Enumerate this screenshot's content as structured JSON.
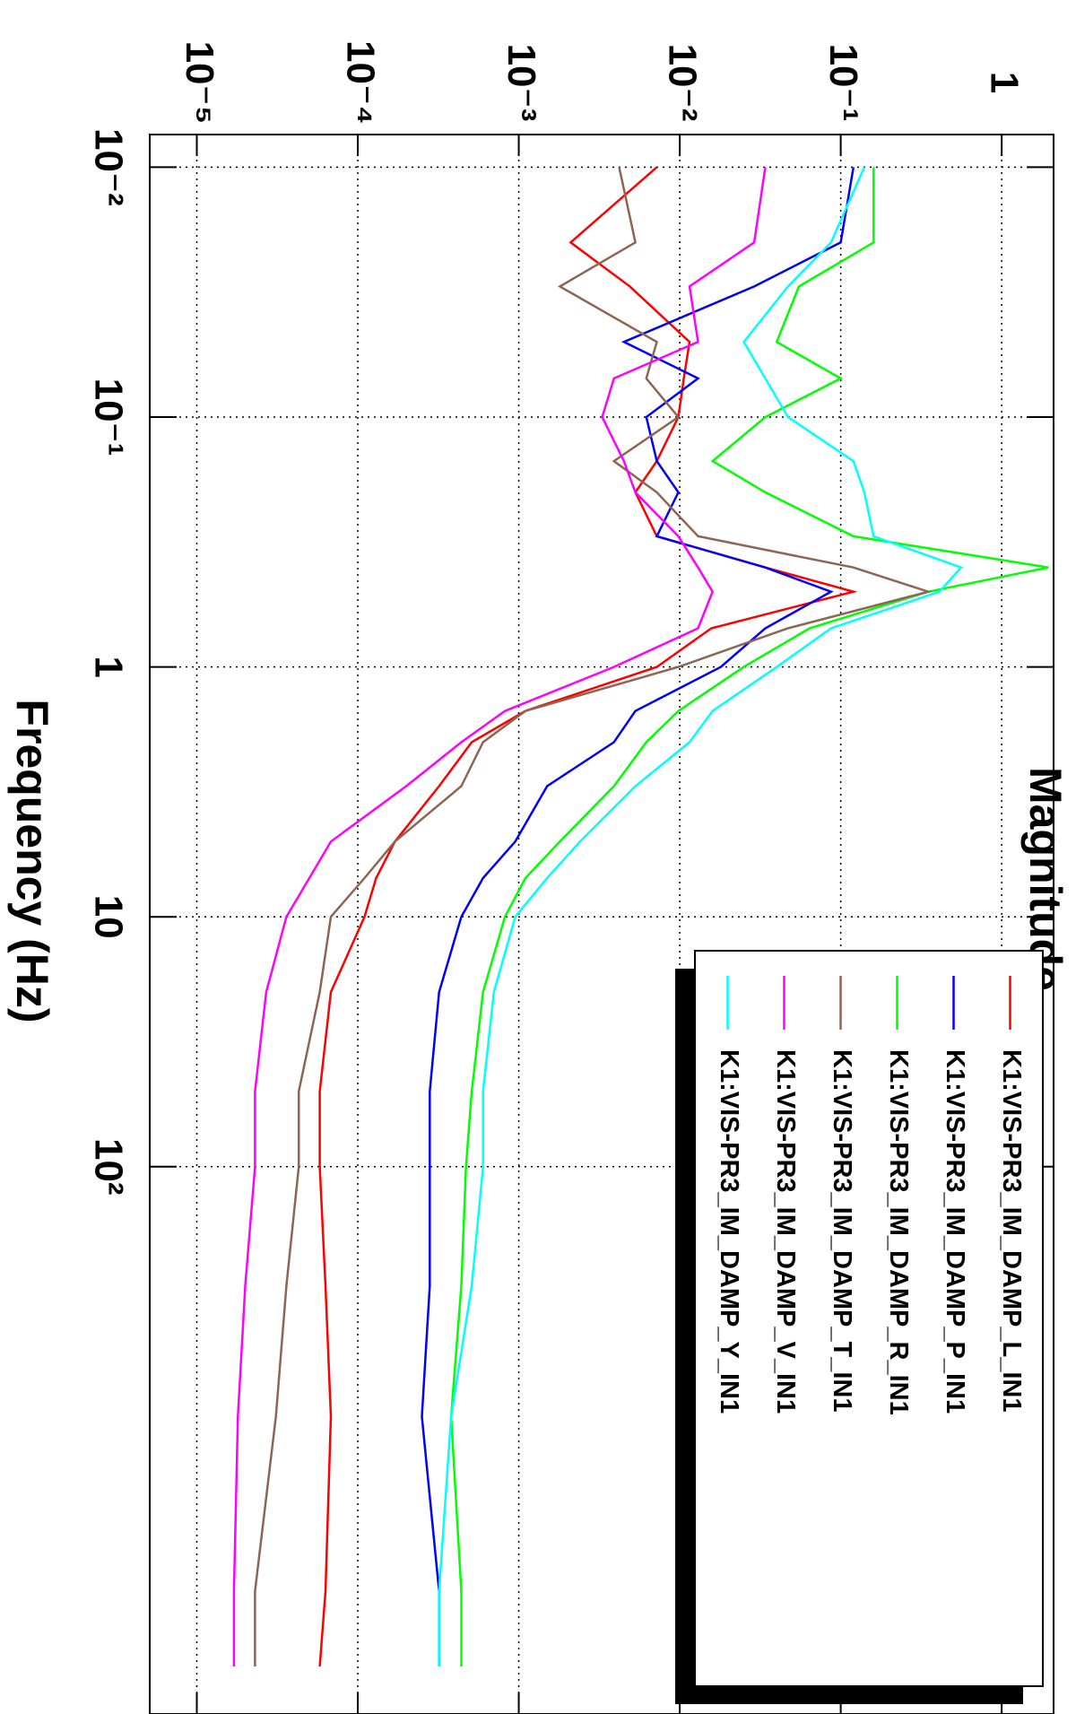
{
  "chart_data": {
    "type": "line",
    "title": "Magnitude",
    "x_label": "Frequency (Hz)",
    "x_scale": "log",
    "y_scale": "log",
    "grid": true,
    "legend": "top right",
    "xlim": [
      0.0074,
      15500
    ],
    "xticks": [
      {
        "value": 0.01,
        "label": "10⁻²"
      },
      {
        "value": 0.1,
        "label": "10⁻¹"
      },
      1,
      10,
      {
        "value": 100,
        "label": "10²"
      }
    ],
    "ylim": [
      5.1e-06,
      2.1
    ],
    "yticks": [
      {
        "value": 1e-05,
        "label": "10⁻⁵"
      },
      {
        "value": 0.0001,
        "label": "10⁻⁴"
      },
      {
        "value": 0.001,
        "label": "10⁻³"
      },
      {
        "value": 0.01,
        "label": "10⁻²"
      },
      {
        "value": 0.1,
        "label": "10⁻¹"
      },
      1
    ],
    "x": [
      0.01,
      0.02,
      0.03,
      0.05,
      0.07,
      0.1,
      0.15,
      0.2,
      0.3,
      0.4,
      0.5,
      0.7,
      1,
      1.5,
      2,
      3,
      5,
      7,
      10,
      20,
      50,
      100,
      300,
      1000,
      5000,
      10000
    ],
    "series": [
      {
        "name": "K1:VIS-PR3_IM_DAMP_L_IN1",
        "color": "#ff0000",
        "values": [
          0.0072,
          0.0021,
          0.0049,
          0.0115,
          0.0106,
          0.0098,
          0.0072,
          0.0053,
          0.0072,
          0.034,
          0.12,
          0.0157,
          0.0072,
          0.0011,
          0.00051,
          0.00032,
          0.00017,
          0.00013,
          0.00011,
          6.8e-05,
          5.8e-05,
          5.8e-05,
          6.3e-05,
          6.8e-05,
          6.3e-05,
          5.8e-05
        ]
      },
      {
        "name": "K1:VIS-PR3_IM_DAMP_P_IN1",
        "color": "#0000ff",
        "values": [
          0.12,
          0.1,
          0.029,
          0.0045,
          0.013,
          0.0062,
          0.0072,
          0.0098,
          0.0072,
          0.034,
          0.087,
          0.034,
          0.018,
          0.0053,
          0.0039,
          0.0015,
          0.00095,
          0.0006,
          0.00044,
          0.00032,
          0.00028,
          0.00028,
          0.00028,
          0.00025,
          0.00032,
          0.00032
        ]
      },
      {
        "name": "K1:VIS-PR3_IM_DAMP_R_IN1",
        "color": "#00ff00",
        "values": [
          0.16,
          0.16,
          0.055,
          0.04,
          0.1,
          0.034,
          0.016,
          0.034,
          0.12,
          1.95,
          0.35,
          0.064,
          0.025,
          0.0098,
          0.0062,
          0.0039,
          0.0018,
          0.0011,
          0.00082,
          0.0006,
          0.00051,
          0.00047,
          0.00044,
          0.00038,
          0.00044,
          0.00044
        ]
      },
      {
        "name": "K1:VIS-PR3_IM_DAMP_T_IN1",
        "color": "#8c6652",
        "values": [
          0.0042,
          0.0053,
          0.0018,
          0.0072,
          0.0062,
          0.0098,
          0.0039,
          0.0072,
          0.013,
          0.12,
          0.35,
          0.047,
          0.0098,
          0.0011,
          0.0006,
          0.00044,
          0.00017,
          0.00011,
          6.8e-05,
          5.8e-05,
          4.3e-05,
          4.3e-05,
          3.6e-05,
          3.1e-05,
          2.3e-05,
          2.3e-05
        ]
      },
      {
        "name": "K1:VIS-PR3_IM_DAMP_V_IN1",
        "color": "#ff00ff",
        "values": [
          0.034,
          0.029,
          0.0115,
          0.013,
          0.0039,
          0.0033,
          0.0045,
          0.0053,
          0.0098,
          0.013,
          0.016,
          0.013,
          0.0039,
          0.00082,
          0.00044,
          0.0002,
          6.8e-05,
          5e-05,
          3.6e-05,
          2.7e-05,
          2.3e-05,
          2.3e-05,
          2e-05,
          1.8e-05,
          1.7e-05,
          1.7e-05
        ]
      },
      {
        "name": "K1:VIS-PR3_IM_DAMP_Y_IN1",
        "color": "#00ffff",
        "values": [
          0.14,
          0.087,
          0.047,
          0.025,
          0.034,
          0.047,
          0.12,
          0.14,
          0.16,
          0.56,
          0.41,
          0.087,
          0.04,
          0.016,
          0.0115,
          0.0053,
          0.0024,
          0.0015,
          0.00095,
          0.0007,
          0.0006,
          0.0006,
          0.00051,
          0.00038,
          0.00032,
          0.00032
        ]
      }
    ]
  }
}
